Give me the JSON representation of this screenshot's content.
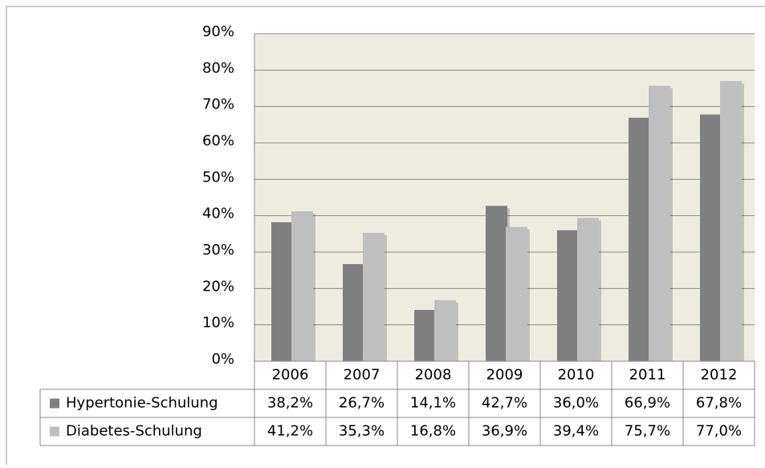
{
  "chart_data": {
    "type": "bar",
    "categories": [
      "2006",
      "2007",
      "2008",
      "2009",
      "2010",
      "2011",
      "2012"
    ],
    "series": [
      {
        "name": "Hypertonie-Schulung",
        "color": "#7f7f7f",
        "values": [
          38.2,
          26.7,
          14.1,
          42.7,
          36.0,
          66.9,
          67.8
        ],
        "value_labels": [
          "38,2%",
          "26,7%",
          "14,1%",
          "42,7%",
          "36,0%",
          "66,9%",
          "67,8%"
        ]
      },
      {
        "name": "Diabetes-Schulung",
        "color": "#bfbfbf",
        "values": [
          41.2,
          35.3,
          16.8,
          36.9,
          39.4,
          75.7,
          77.0
        ],
        "value_labels": [
          "41,2%",
          "35,3%",
          "16,8%",
          "36,9%",
          "39,4%",
          "75,7%",
          "77,0%"
        ]
      }
    ],
    "ylim": [
      0,
      90
    ],
    "yticks": [
      {
        "value": 0,
        "label": "0%"
      },
      {
        "value": 10,
        "label": "10%"
      },
      {
        "value": 20,
        "label": "20%"
      },
      {
        "value": 30,
        "label": "30%"
      },
      {
        "value": 40,
        "label": "40%"
      },
      {
        "value": 50,
        "label": "50%"
      },
      {
        "value": 60,
        "label": "60%"
      },
      {
        "value": 70,
        "label": "70%"
      },
      {
        "value": 80,
        "label": "80%"
      },
      {
        "value": 90,
        "label": "90%"
      }
    ],
    "grid": true,
    "background": "#eeece1"
  }
}
